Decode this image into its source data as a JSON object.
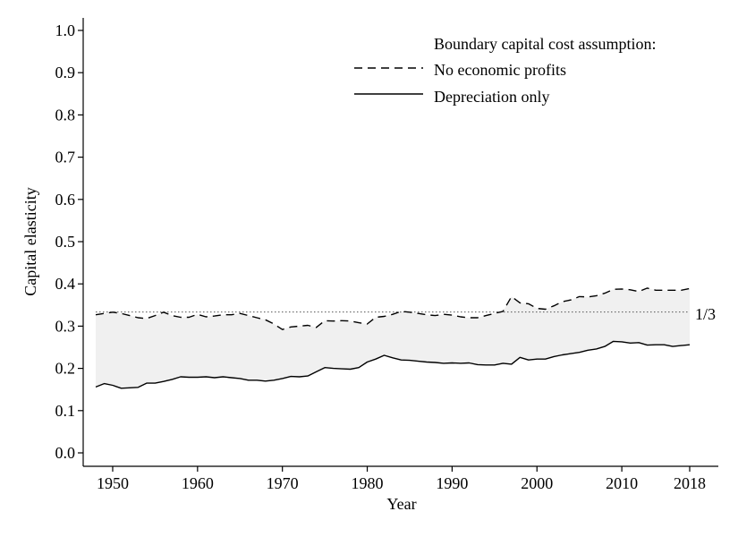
{
  "chart_data": {
    "type": "line",
    "title": "",
    "xlabel": "Year",
    "ylabel": "Capital elasticity",
    "xlim": [
      1948,
      2018
    ],
    "ylim": [
      0,
      1.0
    ],
    "x_ticks": [
      1950,
      1960,
      1970,
      1980,
      1990,
      2000,
      2010,
      2018
    ],
    "x_tick_labels": [
      "1950",
      "1960",
      "1970",
      "1980",
      "1990",
      "2000",
      "2010",
      "2018"
    ],
    "y_ticks": [
      0.0,
      0.1,
      0.2,
      0.3,
      0.4,
      0.5,
      0.6,
      0.7,
      0.8,
      0.9,
      1.0
    ],
    "y_tick_labels": [
      "0.0",
      "0.1",
      "0.2",
      "0.3",
      "0.4",
      "0.5",
      "0.6",
      "0.7",
      "0.8",
      "0.9",
      "1.0"
    ],
    "grid": false,
    "legend": {
      "title": "Boundary capital cost assumption:",
      "placement": "top-right",
      "entries": [
        {
          "label": "No economic profits",
          "style": "dashed"
        },
        {
          "label": "Depreciation only",
          "style": "solid"
        }
      ]
    },
    "reference_line": {
      "y": 0.3333,
      "label": "1/3",
      "style": "dotted"
    },
    "shaded_band": {
      "between": [
        "No economic profits",
        "Depreciation only"
      ],
      "color": "#f0f0f0"
    },
    "x": [
      1948,
      1949,
      1950,
      1951,
      1952,
      1953,
      1954,
      1955,
      1956,
      1957,
      1958,
      1959,
      1960,
      1961,
      1962,
      1963,
      1964,
      1965,
      1966,
      1967,
      1968,
      1969,
      1970,
      1971,
      1972,
      1973,
      1974,
      1975,
      1976,
      1977,
      1978,
      1979,
      1980,
      1981,
      1982,
      1983,
      1984,
      1985,
      1986,
      1987,
      1988,
      1989,
      1990,
      1991,
      1992,
      1993,
      1994,
      1995,
      1996,
      1997,
      1998,
      1999,
      2000,
      2001,
      2002,
      2003,
      2004,
      2005,
      2006,
      2007,
      2008,
      2009,
      2010,
      2011,
      2012,
      2013,
      2014,
      2015,
      2016,
      2017,
      2018
    ],
    "series": [
      {
        "name": "No economic profits",
        "style": "dashed",
        "values": [
          0.327,
          0.33,
          0.333,
          0.33,
          0.325,
          0.32,
          0.318,
          0.325,
          0.333,
          0.325,
          0.321,
          0.321,
          0.328,
          0.322,
          0.324,
          0.327,
          0.327,
          0.33,
          0.325,
          0.32,
          0.315,
          0.305,
          0.292,
          0.298,
          0.3,
          0.302,
          0.297,
          0.313,
          0.312,
          0.313,
          0.312,
          0.308,
          0.305,
          0.321,
          0.323,
          0.328,
          0.335,
          0.333,
          0.33,
          0.327,
          0.325,
          0.328,
          0.326,
          0.322,
          0.32,
          0.32,
          0.325,
          0.33,
          0.335,
          0.37,
          0.355,
          0.353,
          0.342,
          0.34,
          0.348,
          0.358,
          0.362,
          0.37,
          0.369,
          0.372,
          0.378,
          0.387,
          0.388,
          0.386,
          0.382,
          0.39,
          0.385,
          0.385,
          0.385,
          0.385,
          0.389
        ]
      },
      {
        "name": "Depreciation only",
        "style": "solid",
        "values": [
          0.156,
          0.164,
          0.16,
          0.153,
          0.154,
          0.155,
          0.165,
          0.165,
          0.169,
          0.174,
          0.18,
          0.179,
          0.179,
          0.18,
          0.178,
          0.18,
          0.178,
          0.176,
          0.172,
          0.172,
          0.17,
          0.172,
          0.176,
          0.181,
          0.18,
          0.182,
          0.192,
          0.202,
          0.2,
          0.199,
          0.198,
          0.202,
          0.215,
          0.222,
          0.231,
          0.225,
          0.22,
          0.219,
          0.217,
          0.215,
          0.214,
          0.212,
          0.213,
          0.212,
          0.213,
          0.209,
          0.208,
          0.208,
          0.212,
          0.21,
          0.226,
          0.22,
          0.222,
          0.222,
          0.228,
          0.232,
          0.235,
          0.238,
          0.243,
          0.246,
          0.252,
          0.264,
          0.263,
          0.26,
          0.261,
          0.255,
          0.256,
          0.256,
          0.252,
          0.254,
          0.256
        ]
      }
    ]
  }
}
